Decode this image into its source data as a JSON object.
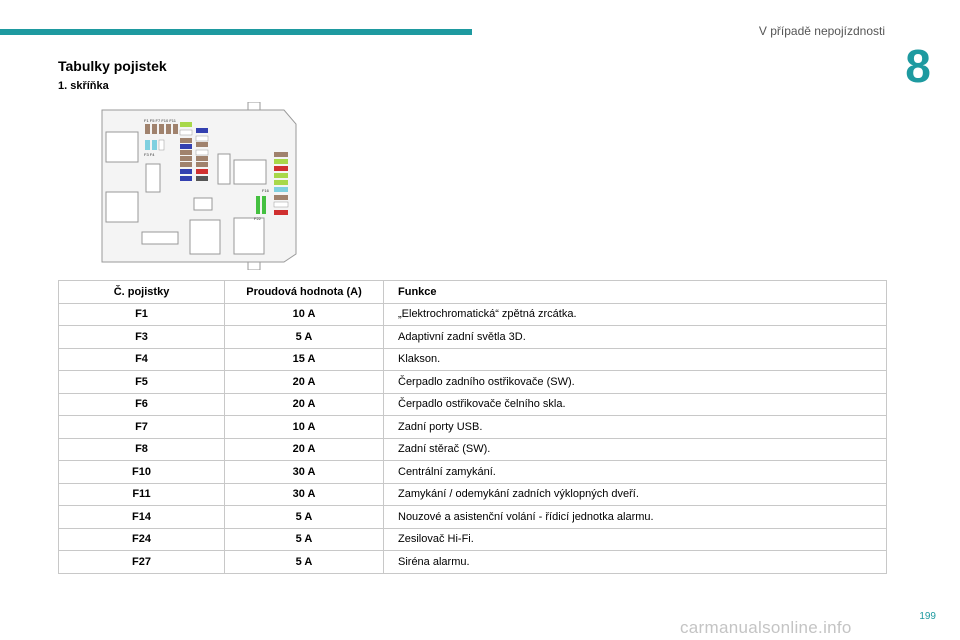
{
  "header": {
    "title": "V případě nepojízdnosti",
    "chapter": "8"
  },
  "section_title": "Tabulky pojistek",
  "subtitle": "1. skříňka",
  "diagram": {
    "top_labels": "F1 F5 F7 F10 F11",
    "row_labels": "F3 F4",
    "side_label_1": "F16",
    "side_label_2": "F22"
  },
  "table": {
    "headers": [
      "Č. pojistky",
      "Proudová hodnota (A)",
      "Funkce"
    ],
    "rows": [
      [
        "F1",
        "10 A",
        "„Elektrochromatická“ zpětná zrcátka."
      ],
      [
        "F3",
        "5 A",
        "Adaptivní zadní světla 3D."
      ],
      [
        "F4",
        "15 A",
        "Klakson."
      ],
      [
        "F5",
        "20 A",
        "Čerpadlo zadního ostřikovače (SW)."
      ],
      [
        "F6",
        "20 A",
        "Čerpadlo ostřikovače čelního skla."
      ],
      [
        "F7",
        "10 A",
        "Zadní porty USB."
      ],
      [
        "F8",
        "20 A",
        "Zadní stěrač (SW)."
      ],
      [
        "F10",
        "30 A",
        "Centrální zamykání."
      ],
      [
        "F11",
        "30 A",
        "Zamykání / odemykání zadních výklopných dveří."
      ],
      [
        "F14",
        "5 A",
        "Nouzové a asistenční volání - řídicí jednotka alarmu."
      ],
      [
        "F24",
        "5 A",
        "Zesilovač Hi-Fi."
      ],
      [
        "F27",
        "5 A",
        "Siréna alarmu."
      ]
    ]
  },
  "page_number": "199",
  "watermark": "carmanualsonline.info",
  "colors": {
    "accent": "#1e9aa0"
  }
}
